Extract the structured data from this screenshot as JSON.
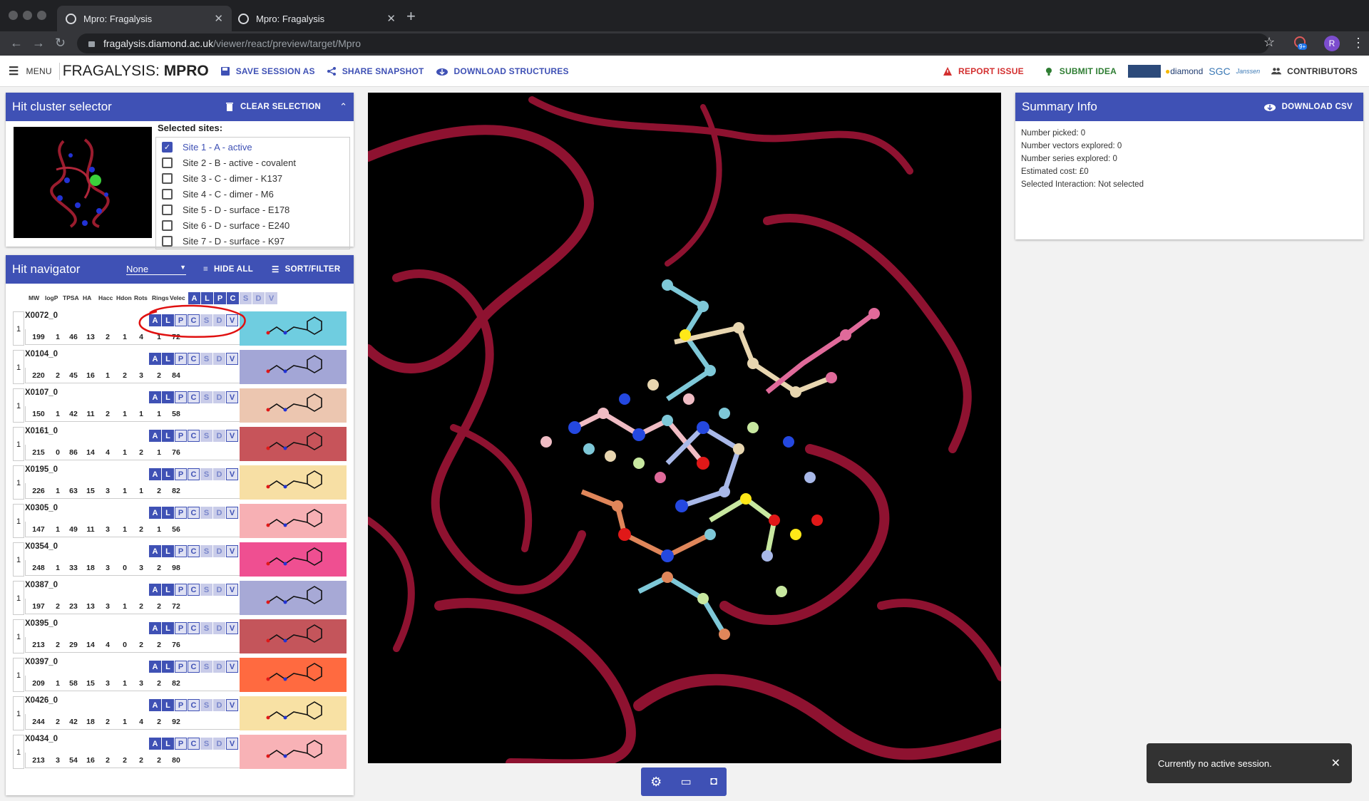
{
  "browser": {
    "tabs": [
      {
        "title": "Mpro: Fragalysis"
      },
      {
        "title": "Mpro: Fragalysis"
      }
    ],
    "url_host": "fragalysis.diamond.ac.uk",
    "url_path": "/viewer/react/preview/target/Mpro",
    "notification_count": "9+",
    "profile_initial": "R"
  },
  "appbar": {
    "menu": "MENU",
    "title_prefix": "FRAGALYSIS:",
    "title_target": "MPRO",
    "save_session": "SAVE SESSION AS",
    "share_snapshot": "SHARE SNAPSHOT",
    "download_structures": "DOWNLOAD STRUCTURES",
    "report_issue": "REPORT ISSUE",
    "submit_idea": "SUBMIT IDEA",
    "contributors": "CONTRIBUTORS",
    "logos": [
      "diamond",
      "SGC",
      "Janssen"
    ]
  },
  "hit_cluster": {
    "title": "Hit cluster selector",
    "clear": "CLEAR SELECTION",
    "selected_label": "Selected sites:",
    "sites": [
      {
        "label": "Site 1 - A - active",
        "checked": true
      },
      {
        "label": "Site 2 - B - active - covalent",
        "checked": false
      },
      {
        "label": "Site 3 - C - dimer - K137",
        "checked": false
      },
      {
        "label": "Site 4 - C - dimer - M6",
        "checked": false
      },
      {
        "label": "Site 5 - D - surface - E178",
        "checked": false
      },
      {
        "label": "Site 6 - D - surface - E240",
        "checked": false
      },
      {
        "label": "Site 7 - D - surface - K97",
        "checked": false
      }
    ]
  },
  "hit_navigator": {
    "title": "Hit navigator",
    "select_value": "None",
    "hide_all": "HIDE ALL",
    "sort_filter": "SORT/FILTER",
    "columns": [
      "MW",
      "logP",
      "TPSA",
      "HA",
      "Hacc",
      "Hdon",
      "Rots",
      "Rings",
      "Velec"
    ],
    "badges": [
      "A",
      "L",
      "P",
      "C",
      "S",
      "D",
      "V"
    ],
    "rows": [
      {
        "group": "1",
        "code": "X0072_0",
        "props": [
          "199",
          "1",
          "46",
          "13",
          "2",
          "1",
          "4",
          "1",
          "72"
        ],
        "color": "#6fcde0"
      },
      {
        "group": "1",
        "code": "X0104_0",
        "props": [
          "220",
          "2",
          "45",
          "16",
          "1",
          "2",
          "3",
          "2",
          "84"
        ],
        "color": "#a3a6d6"
      },
      {
        "group": "1",
        "code": "X0107_0",
        "props": [
          "150",
          "1",
          "42",
          "11",
          "2",
          "1",
          "1",
          "1",
          "58"
        ],
        "color": "#ecc6b0"
      },
      {
        "group": "1",
        "code": "X0161_0",
        "props": [
          "215",
          "0",
          "86",
          "14",
          "4",
          "1",
          "2",
          "1",
          "76"
        ],
        "color": "#c7545a"
      },
      {
        "group": "1",
        "code": "X0195_0",
        "props": [
          "226",
          "1",
          "63",
          "15",
          "3",
          "1",
          "1",
          "2",
          "82"
        ],
        "color": "#f7dfa4"
      },
      {
        "group": "1",
        "code": "X0305_0",
        "props": [
          "147",
          "1",
          "49",
          "11",
          "3",
          "1",
          "2",
          "1",
          "56"
        ],
        "color": "#f7b0b4"
      },
      {
        "group": "1",
        "code": "X0354_0",
        "props": [
          "248",
          "1",
          "33",
          "18",
          "3",
          "0",
          "3",
          "2",
          "98"
        ],
        "color": "#ef4f91"
      },
      {
        "group": "1",
        "code": "X0387_0",
        "props": [
          "197",
          "2",
          "23",
          "13",
          "3",
          "1",
          "2",
          "2",
          "72"
        ],
        "color": "#a7a9d6"
      },
      {
        "group": "1",
        "code": "X0395_0",
        "props": [
          "213",
          "2",
          "29",
          "14",
          "4",
          "0",
          "2",
          "2",
          "76"
        ],
        "color": "#c4555b"
      },
      {
        "group": "1",
        "code": "X0397_0",
        "props": [
          "209",
          "1",
          "58",
          "15",
          "3",
          "1",
          "3",
          "2",
          "82"
        ],
        "color": "#ff6a40"
      },
      {
        "group": "1",
        "code": "X0426_0",
        "props": [
          "244",
          "2",
          "42",
          "18",
          "2",
          "1",
          "4",
          "2",
          "92"
        ],
        "color": "#f8e1a4"
      },
      {
        "group": "1",
        "code": "X0434_0",
        "props": [
          "213",
          "3",
          "54",
          "16",
          "2",
          "2",
          "2",
          "2",
          "80"
        ],
        "color": "#f8b2b6"
      }
    ]
  },
  "summary": {
    "title": "Summary Info",
    "download_csv": "DOWNLOAD CSV",
    "lines": [
      "Number picked: 0",
      "Number vectors explored: 0",
      "Number series explored: 0",
      "Estimated cost: £0",
      "Selected Interaction: Not selected"
    ]
  },
  "toast": {
    "message": "Currently no active session."
  }
}
